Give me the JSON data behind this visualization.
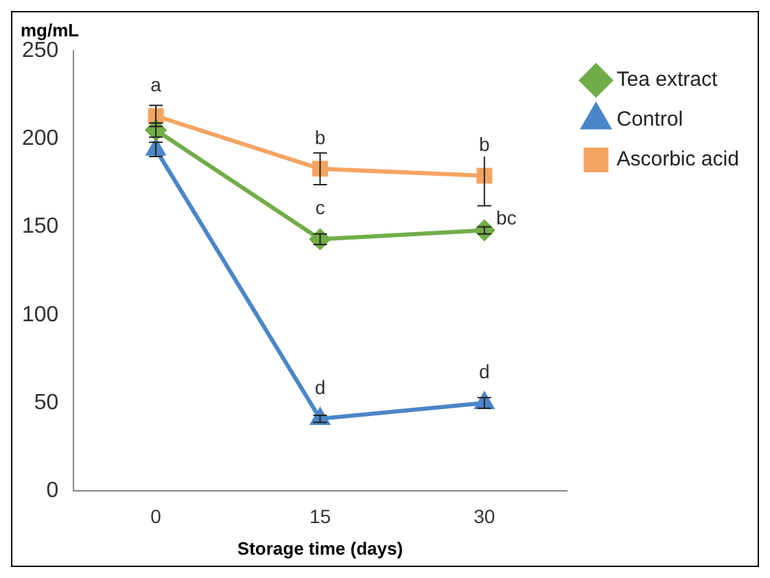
{
  "chart_data": {
    "type": "line",
    "xlabel": "Storage time (days)",
    "ylabel": "mg/mL",
    "categories": [
      "0",
      "15",
      "30"
    ],
    "series": [
      {
        "name": "Tea extract",
        "color": "#70ad47",
        "marker": "diamond",
        "values": [
          205,
          143,
          148
        ],
        "errors": [
          4,
          3,
          2
        ]
      },
      {
        "name": "Control",
        "color": "#4a86c8",
        "marker": "triangle",
        "values": [
          194,
          41,
          50
        ],
        "errors": [
          4,
          2,
          3
        ]
      },
      {
        "name": "Ascorbic acid",
        "color": "#f4a460",
        "marker": "square",
        "values": [
          213,
          183,
          179
        ],
        "errors": [
          6,
          9,
          17
        ]
      }
    ],
    "ylim": [
      0,
      250
    ],
    "yticks": [
      0,
      50,
      100,
      150,
      200,
      250
    ],
    "grid": false,
    "legend": "top right",
    "line_style": "solid",
    "annotations": [
      {
        "text": "a",
        "x": "0",
        "y": 213
      },
      {
        "text": "b",
        "x": "15",
        "y": 183
      },
      {
        "text": "b",
        "x": "30",
        "y": 179
      },
      {
        "text": "c",
        "x": "15",
        "y": 143
      },
      {
        "text": "bc",
        "x": "30",
        "y": 148
      },
      {
        "text": "d",
        "x": "15",
        "y": 41
      },
      {
        "text": "d",
        "x": "30",
        "y": 50
      }
    ]
  }
}
